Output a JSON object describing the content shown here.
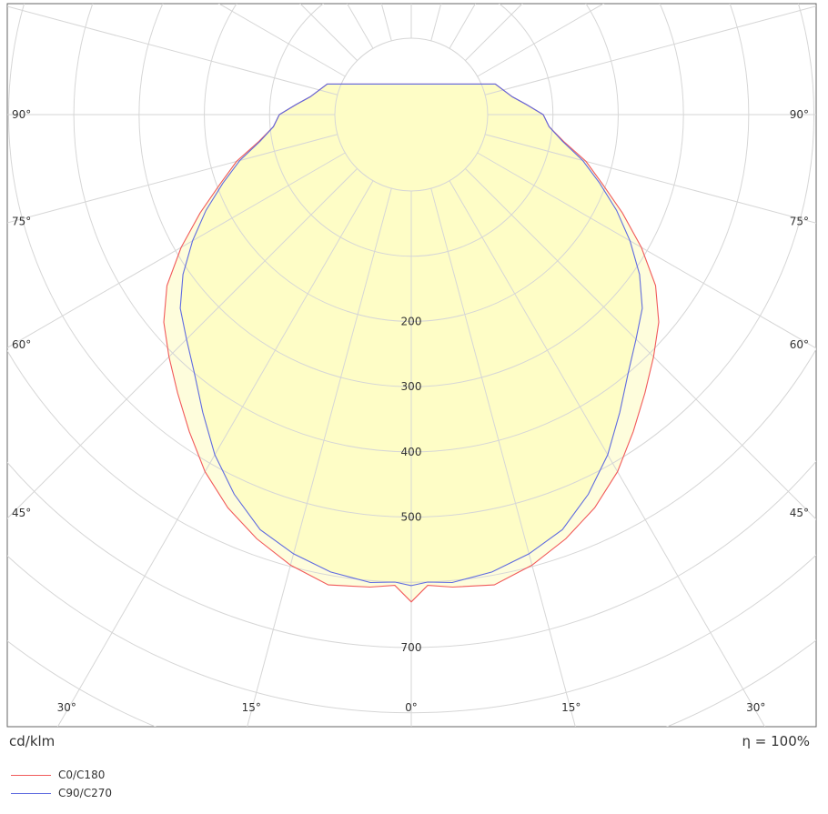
{
  "chart_data": {
    "type": "polar",
    "unit": "cd/klm",
    "efficiency": "η = 100%",
    "radial_ticks": [
      200,
      300,
      400,
      500,
      700
    ],
    "radial_max": 800,
    "angle_labels": {
      "side": [
        "90°",
        "75°",
        "60°",
        "45°"
      ],
      "bottom": [
        "30°",
        "15°",
        "0°",
        "15°",
        "30°"
      ]
    },
    "grid": true,
    "fill_color": "#fdfcbf",
    "series": [
      {
        "name": "C0/C180",
        "color": "#f15a5a",
        "points": [
          [
            0,
            630
          ],
          [
            2,
            605
          ],
          [
            5,
            610
          ],
          [
            10,
            615
          ],
          [
            15,
            598
          ],
          [
            20,
            575
          ],
          [
            25,
            548
          ],
          [
            30,
            515
          ],
          [
            35,
            476
          ],
          [
            40,
            440
          ],
          [
            45,
            408
          ],
          [
            50,
            378
          ],
          [
            55,
            340
          ],
          [
            60,
            290
          ],
          [
            65,
            240
          ],
          [
            70,
            195
          ],
          [
            75,
            160
          ],
          [
            80,
            120
          ],
          [
            85,
            95
          ],
          [
            90,
            85
          ],
          [
            95,
            60
          ],
          [
            100,
            40
          ],
          [
            110,
            20
          ]
        ]
      },
      {
        "name": "C90/C270",
        "color": "#5f6be0",
        "points": [
          [
            0,
            605
          ],
          [
            2,
            600
          ],
          [
            5,
            603
          ],
          [
            10,
            595
          ],
          [
            15,
            580
          ],
          [
            20,
            560
          ],
          [
            25,
            525
          ],
          [
            30,
            485
          ],
          [
            35,
            440
          ],
          [
            40,
            400
          ],
          [
            45,
            370
          ],
          [
            50,
            345
          ],
          [
            55,
            310
          ],
          [
            60,
            270
          ],
          [
            65,
            230
          ],
          [
            70,
            190
          ],
          [
            75,
            155
          ],
          [
            80,
            118
          ],
          [
            85,
            95
          ],
          [
            90,
            85
          ],
          [
            95,
            60
          ],
          [
            100,
            40
          ],
          [
            110,
            20
          ]
        ]
      }
    ]
  }
}
